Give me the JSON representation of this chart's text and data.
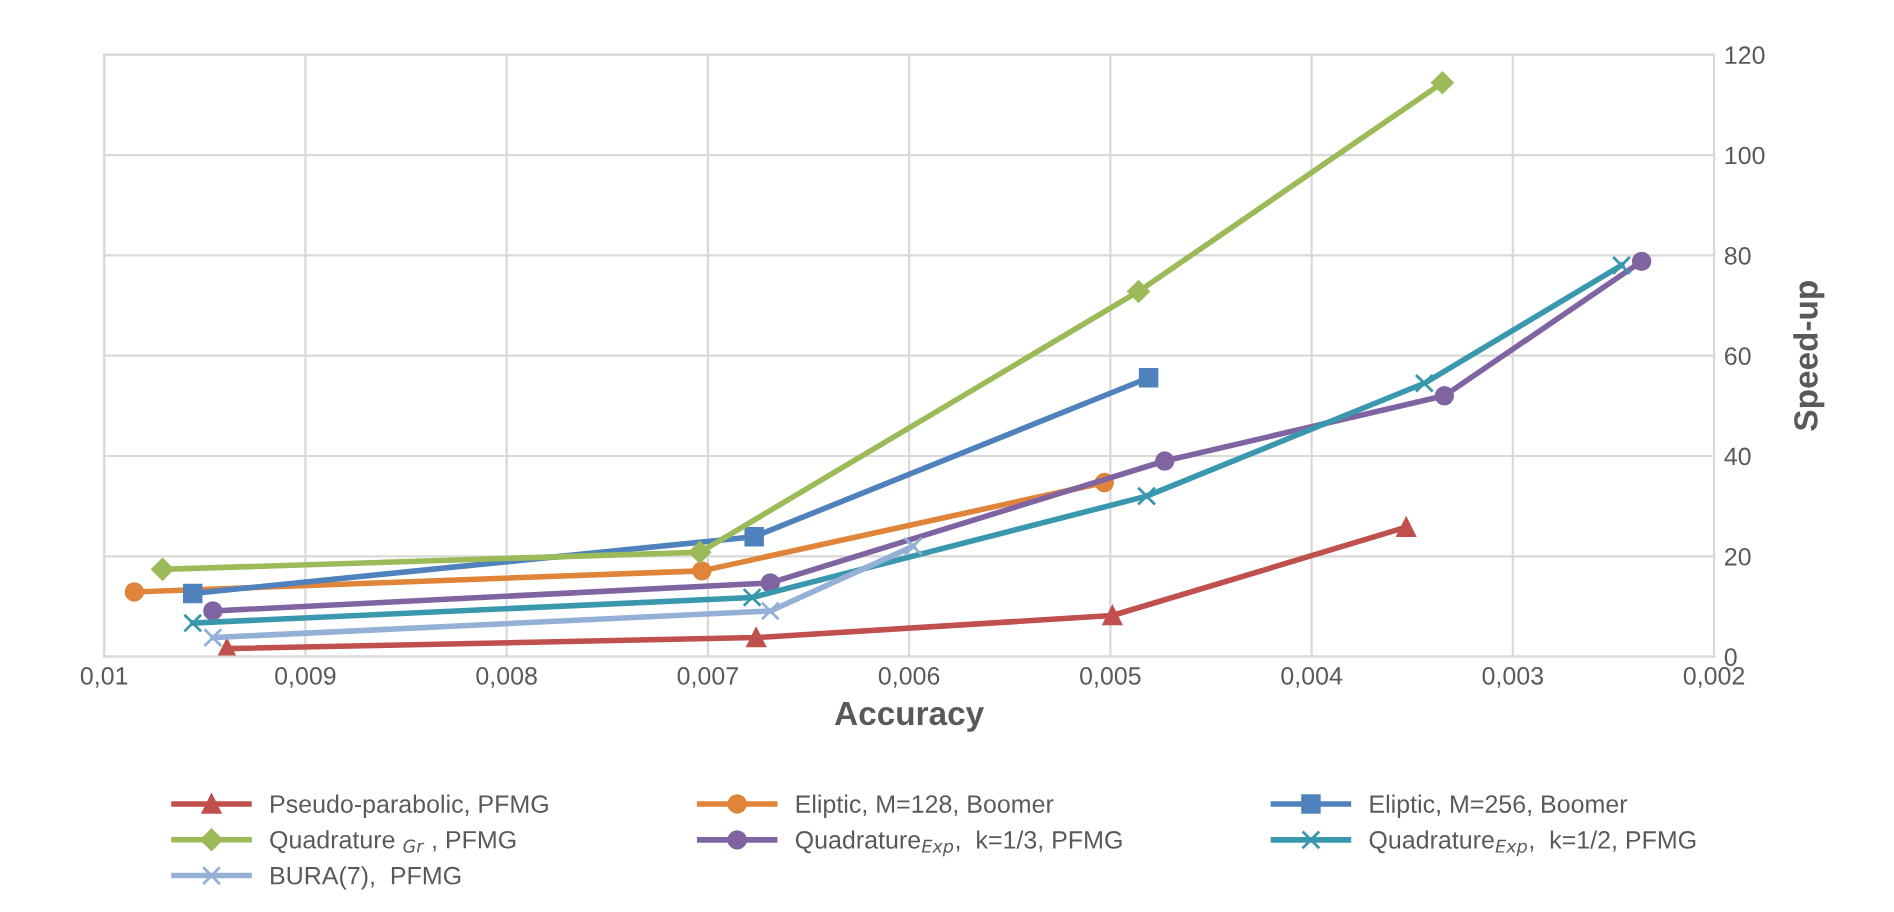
{
  "chart_data": {
    "type": "line",
    "xlabel": "Accuracy",
    "ylabel": "Speed-up",
    "xlim": [
      0.01,
      0.002
    ],
    "ylim": [
      0,
      120
    ],
    "xticks": [
      {
        "value": 0.01,
        "label": "0,01"
      },
      {
        "value": 0.009,
        "label": "0,009"
      },
      {
        "value": 0.008,
        "label": "0,008"
      },
      {
        "value": 0.007,
        "label": "0,007"
      },
      {
        "value": 0.006,
        "label": "0,006"
      },
      {
        "value": 0.005,
        "label": "0,005"
      },
      {
        "value": 0.004,
        "label": "0,004"
      },
      {
        "value": 0.003,
        "label": "0,003"
      },
      {
        "value": 0.002,
        "label": "0,002"
      }
    ],
    "yticks": [
      0,
      20,
      40,
      60,
      80,
      100,
      120
    ],
    "grid": true,
    "legend": "bottom",
    "series": [
      {
        "name": "Pseudo-parabolic, PFMG",
        "color": "#c0504d",
        "marker": "triangle",
        "x": [
          0.00939,
          0.00676,
          0.00499,
          0.00353
        ],
        "values": [
          1.6,
          3.8,
          8.2,
          25.8
        ]
      },
      {
        "name": "Eliptic, M=128, Boomer",
        "color": "#e0843a",
        "marker": "circle",
        "x": [
          0.00985,
          0.00703,
          0.00503
        ],
        "values": [
          12.9,
          17.1,
          34.7
        ]
      },
      {
        "name": "Eliptic, M=256, Boomer",
        "color": "#4f81bd",
        "marker": "square",
        "x": [
          0.00956,
          0.00677,
          0.00481
        ],
        "values": [
          12.6,
          23.9,
          55.6
        ]
      },
      {
        "name": "Quadrature $_{Gr}$ , PFMG",
        "color": "#9bbb59",
        "marker": "diamond",
        "x": [
          0.00971,
          0.00704,
          0.00486,
          0.00335
        ],
        "values": [
          17.4,
          20.8,
          72.8,
          114.4
        ]
      },
      {
        "name": "Quadrature$_{Exp}$,  k=1/3, PFMG",
        "color": "#8064a2",
        "marker": "circle",
        "x": [
          0.00946,
          0.00669,
          0.00473,
          0.00334,
          0.00236
        ],
        "values": [
          9.1,
          14.7,
          39.0,
          52.0,
          78.8
        ]
      },
      {
        "name": "Quadrature$_{Exp}$,  k=1/2, PFMG",
        "color": "#3a98ae",
        "marker": "cross",
        "x": [
          0.00956,
          0.00678,
          0.00482,
          0.00344,
          0.00246
        ],
        "values": [
          6.7,
          11.8,
          32.0,
          54.5,
          78.0
        ]
      },
      {
        "name": "BURA(7),  PFMG",
        "color": "#95b0d6",
        "marker": "cross",
        "x": [
          0.00946,
          0.00669,
          0.00598
        ],
        "values": [
          3.8,
          9.1,
          22.0
        ]
      }
    ]
  }
}
